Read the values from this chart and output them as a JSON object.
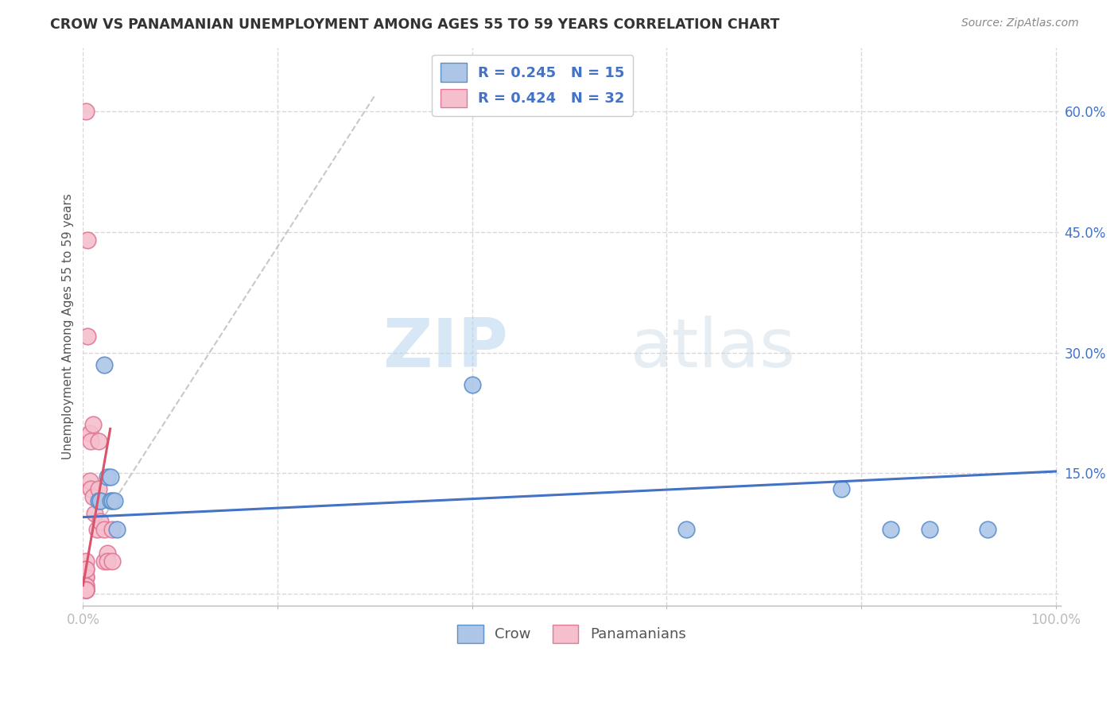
{
  "title": "CROW VS PANAMANIAN UNEMPLOYMENT AMONG AGES 55 TO 59 YEARS CORRELATION CHART",
  "source": "Source: ZipAtlas.com",
  "ylabel": "Unemployment Among Ages 55 to 59 years",
  "crow_color": "#adc6e8",
  "crow_edge_color": "#5b8fc9",
  "pana_color": "#f5bfcd",
  "pana_edge_color": "#e07898",
  "trend_crow_color": "#4472c4",
  "trend_pana_color": "#d9536a",
  "trend_pana_dash_color": "#c8c8c8",
  "R_crow": 0.245,
  "N_crow": 15,
  "R_pana": 0.424,
  "N_pana": 32,
  "crow_points_x": [
    0.016,
    0.018,
    0.022,
    0.025,
    0.028,
    0.028,
    0.03,
    0.032,
    0.035,
    0.4,
    0.62,
    0.78,
    0.83,
    0.87,
    0.93
  ],
  "crow_points_y": [
    0.115,
    0.115,
    0.285,
    0.145,
    0.145,
    0.115,
    0.115,
    0.115,
    0.08,
    0.26,
    0.08,
    0.13,
    0.08,
    0.08,
    0.08
  ],
  "pana_points_x": [
    0.003,
    0.003,
    0.003,
    0.003,
    0.003,
    0.003,
    0.003,
    0.003,
    0.003,
    0.003,
    0.003,
    0.003,
    0.005,
    0.005,
    0.007,
    0.007,
    0.008,
    0.008,
    0.01,
    0.01,
    0.012,
    0.014,
    0.016,
    0.016,
    0.018,
    0.022,
    0.022,
    0.025,
    0.025,
    0.03,
    0.03,
    0.003
  ],
  "pana_points_y": [
    0.6,
    0.04,
    0.03,
    0.02,
    0.02,
    0.01,
    0.01,
    0.005,
    0.005,
    0.005,
    0.005,
    0.005,
    0.32,
    0.44,
    0.2,
    0.14,
    0.19,
    0.13,
    0.21,
    0.12,
    0.1,
    0.08,
    0.19,
    0.13,
    0.09,
    0.08,
    0.04,
    0.05,
    0.04,
    0.08,
    0.04,
    0.03
  ],
  "watermark_zip": "ZIP",
  "watermark_atlas": "atlas",
  "background_color": "#ffffff",
  "grid_color": "#d8d8d8",
  "xlim": [
    0.0,
    1.005
  ],
  "ylim": [
    -0.015,
    0.68
  ],
  "ytick_values": [
    0.0,
    0.15,
    0.3,
    0.45,
    0.6
  ],
  "ytick_labels": [
    "",
    "15.0%",
    "30.0%",
    "45.0%",
    "60.0%"
  ]
}
